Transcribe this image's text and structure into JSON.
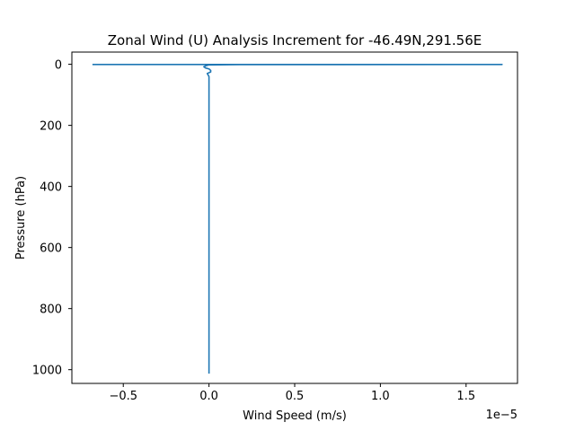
{
  "chart_data": {
    "type": "line",
    "title": "Zonal Wind (U) Analysis Increment for -46.49N,291.56E",
    "xlabel": "Wind Speed (m/s)",
    "ylabel": "Pressure (hPa)",
    "x_offset_label": "1e−5",
    "x_scale": 1e-05,
    "xlim": [
      -0.8,
      1.8
    ],
    "ylim": [
      1045,
      -40
    ],
    "y_inverted": true,
    "xticks": [
      -0.5,
      0.0,
      0.5,
      1.0,
      1.5
    ],
    "xtick_labels": [
      "−0.5",
      "0.0",
      "0.5",
      "1.0",
      "1.5"
    ],
    "yticks": [
      0,
      200,
      400,
      600,
      800,
      1000
    ],
    "ytick_labels": [
      "0",
      "200",
      "400",
      "600",
      "800",
      "1000"
    ],
    "grid": false,
    "series": [
      {
        "color": "#1f77b4",
        "points": [
          {
            "x": -0.68,
            "y": 0.5
          },
          {
            "x": 1.71,
            "y": 0.6
          },
          {
            "x": 0.18,
            "y": 1.0
          },
          {
            "x": 0.0,
            "y": 2.0
          },
          {
            "x": -0.02,
            "y": 5.0
          },
          {
            "x": -0.03,
            "y": 8.0
          },
          {
            "x": -0.02,
            "y": 12.0
          },
          {
            "x": 0.0,
            "y": 15.0
          },
          {
            "x": 0.01,
            "y": 20.0
          },
          {
            "x": 0.01,
            "y": 25.0
          },
          {
            "x": -0.01,
            "y": 30.0
          },
          {
            "x": 0.0,
            "y": 40.0
          },
          {
            "x": 0.0,
            "y": 60.0
          },
          {
            "x": 0.0,
            "y": 100.0
          },
          {
            "x": 0.0,
            "y": 200.0
          },
          {
            "x": 0.0,
            "y": 400.0
          },
          {
            "x": 0.0,
            "y": 600.0
          },
          {
            "x": 0.0,
            "y": 800.0
          },
          {
            "x": 0.0,
            "y": 1013.0
          }
        ]
      }
    ]
  }
}
